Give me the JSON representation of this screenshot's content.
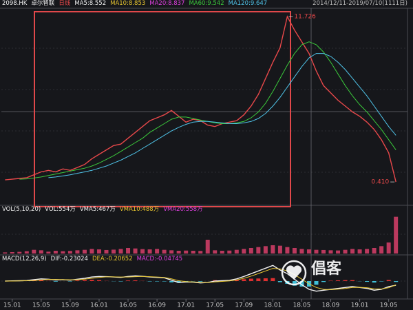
{
  "header": {
    "symbol": "2098.HK",
    "name": "卓尔智联",
    "period": "日线",
    "date_range": "2014/12/11-2019/07/10(1111日)"
  },
  "watermark": "倡客",
  "chart_data": [
    {
      "type": "line",
      "legend": [
        {
          "label": "MA5:8.552",
          "color": "#f2f2f2"
        },
        {
          "label": "MA10:8.853",
          "color": "#e8c630"
        },
        {
          "label": "MA20:8.837",
          "color": "#e040e0"
        },
        {
          "label": "MA60:9.542",
          "color": "#3bc93b"
        },
        {
          "label": "MA120:9.647",
          "color": "#4fc3e8"
        }
      ],
      "x": [
        -1,
        0,
        1,
        2,
        3,
        4,
        5,
        6,
        7,
        8,
        9,
        10,
        11,
        12,
        13,
        14,
        15,
        16,
        17,
        18,
        19,
        20,
        21,
        22,
        23,
        24,
        25,
        26,
        27,
        28,
        29,
        30,
        31,
        32,
        33,
        34,
        35,
        36,
        37,
        38,
        39,
        40,
        41,
        42,
        43,
        44,
        45,
        46,
        47,
        48,
        49,
        50,
        51,
        52,
        53
      ],
      "xlim": [
        -1.5,
        54.6
      ],
      "ylim": [
        -1,
        12.2
      ],
      "series": [
        {
          "color": "#e8484a",
          "values": [
            0.55,
            0.6,
            0.65,
            0.7,
            0.9,
            1.1,
            1.2,
            1.1,
            1.3,
            1.2,
            1.4,
            1.6,
            2.0,
            2.3,
            2.6,
            2.9,
            3.0,
            3.4,
            3.8,
            4.2,
            4.6,
            4.8,
            5.0,
            5.3,
            4.9,
            4.5,
            4.7,
            4.6,
            4.3,
            4.2,
            4.4,
            4.5,
            4.6,
            5.0,
            5.6,
            6.4,
            7.5,
            8.6,
            9.6,
            11.726,
            10.8,
            10.0,
            9.2,
            8.0,
            7.0,
            6.5,
            6.0,
            5.6,
            5.2,
            4.9,
            4.5,
            4.0,
            3.3,
            2.4,
            0.41
          ]
        },
        {
          "color": "#3bc93b",
          "values": [
            null,
            null,
            0.6,
            0.62,
            0.68,
            0.75,
            0.85,
            0.95,
            1.05,
            1.15,
            1.25,
            1.35,
            1.5,
            1.7,
            1.95,
            2.2,
            2.5,
            2.8,
            3.1,
            3.4,
            3.8,
            4.1,
            4.4,
            4.7,
            4.85,
            4.85,
            4.75,
            4.65,
            4.55,
            4.45,
            4.4,
            4.4,
            4.45,
            4.55,
            4.8,
            5.2,
            5.8,
            6.6,
            7.5,
            8.4,
            9.2,
            9.8,
            10.0,
            9.8,
            9.3,
            8.6,
            7.8,
            7.0,
            6.3,
            5.7,
            5.2,
            4.6,
            4.0,
            3.3,
            2.6
          ]
        },
        {
          "color": "#4fc3e8",
          "values": [
            null,
            null,
            null,
            null,
            null,
            null,
            0.7,
            0.75,
            0.82,
            0.9,
            1.0,
            1.1,
            1.2,
            1.35,
            1.5,
            1.7,
            1.9,
            2.15,
            2.4,
            2.7,
            3.0,
            3.3,
            3.6,
            3.9,
            4.15,
            4.35,
            4.5,
            4.55,
            4.55,
            4.5,
            4.45,
            4.4,
            4.4,
            4.45,
            4.55,
            4.75,
            5.1,
            5.6,
            6.2,
            6.9,
            7.6,
            8.3,
            8.9,
            9.2,
            9.2,
            9.0,
            8.6,
            8.1,
            7.5,
            6.9,
            6.3,
            5.6,
            4.9,
            4.2,
            3.6
          ]
        }
      ],
      "annotations": [
        {
          "text": "11.726",
          "x": 38,
          "y": 11.726
        },
        {
          "text": "0.410",
          "x": 53,
          "y": 0.41
        }
      ]
    },
    {
      "type": "bar",
      "title": "VOL(5,10,20)",
      "legend": [
        {
          "label": "VOL:554万",
          "color": "#f2f2f2"
        },
        {
          "label": "VMA5:467万",
          "color": "#f2f2f2"
        },
        {
          "label": "VMA10:488万",
          "color": "#e8c630"
        },
        {
          "label": "VMA20:558万",
          "color": "#e040e0"
        }
      ],
      "x": [
        -1,
        0,
        1,
        2,
        3,
        4,
        5,
        6,
        7,
        8,
        9,
        10,
        11,
        12,
        13,
        14,
        15,
        16,
        17,
        18,
        19,
        20,
        21,
        22,
        23,
        24,
        25,
        26,
        27,
        28,
        29,
        30,
        31,
        32,
        33,
        34,
        35,
        36,
        37,
        38,
        39,
        40,
        41,
        42,
        43,
        44,
        45,
        46,
        47,
        48,
        49,
        50,
        51,
        52,
        53
      ],
      "xlim": [
        -1.5,
        54.6
      ],
      "ylim": [
        0,
        4200
      ],
      "color": "#d8406a",
      "values": [
        120,
        150,
        180,
        250,
        400,
        350,
        200,
        300,
        250,
        280,
        350,
        400,
        500,
        450,
        380,
        420,
        500,
        600,
        550,
        480,
        450,
        500,
        400,
        350,
        300,
        320,
        300,
        280,
        1500,
        350,
        300,
        320,
        400,
        500,
        600,
        700,
        800,
        900,
        850,
        700,
        600,
        500,
        450,
        400,
        380,
        350,
        330,
        400,
        500,
        450,
        500,
        600,
        800,
        1200,
        4000
      ]
    },
    {
      "type": "macd",
      "title": "MACD(12,26,9)",
      "legend": [
        {
          "label": "DIF:-0.23024",
          "color": "#f2f2f2"
        },
        {
          "label": "DEA:-0.20652",
          "color": "#e8c630"
        },
        {
          "label": "MACD:-0.04745",
          "color": "#e040e0"
        }
      ],
      "x": [
        -1,
        0,
        1,
        2,
        3,
        4,
        5,
        6,
        7,
        8,
        9,
        10,
        11,
        12,
        13,
        14,
        15,
        16,
        17,
        18,
        19,
        20,
        21,
        22,
        23,
        24,
        25,
        26,
        27,
        28,
        29,
        30,
        31,
        32,
        33,
        34,
        35,
        36,
        37,
        38,
        39,
        40,
        41,
        42,
        43,
        44,
        45,
        46,
        47,
        48,
        49,
        50,
        51,
        52,
        53
      ],
      "xlim": [
        -1.5,
        54.6
      ],
      "ylim": [
        -0.9,
        0.9
      ],
      "xticks": [
        {
          "value": 0,
          "label": "15.01"
        },
        {
          "value": 4,
          "label": "15.05"
        },
        {
          "value": 8,
          "label": "15.09"
        },
        {
          "value": 12,
          "label": "16.01"
        },
        {
          "value": 16,
          "label": "16.05"
        },
        {
          "value": 20,
          "label": "16.09"
        },
        {
          "value": 24,
          "label": "17.01"
        },
        {
          "value": 28,
          "label": "17.05"
        },
        {
          "value": 32,
          "label": "17.09"
        },
        {
          "value": 36,
          "label": "18.01"
        },
        {
          "value": 40,
          "label": "18.05"
        },
        {
          "value": 44,
          "label": "18.09"
        },
        {
          "value": 48,
          "label": "19.01"
        },
        {
          "value": 52,
          "label": "19.05"
        }
      ],
      "series": [
        {
          "color": "#f2f2f2",
          "values": [
            0.0,
            0.01,
            0.02,
            0.03,
            0.08,
            0.12,
            0.1,
            0.06,
            0.08,
            0.05,
            0.1,
            0.15,
            0.22,
            0.25,
            0.24,
            0.22,
            0.2,
            0.25,
            0.28,
            0.26,
            0.22,
            0.2,
            0.18,
            0.05,
            -0.08,
            -0.05,
            -0.06,
            -0.1,
            -0.08,
            0.0,
            0.02,
            0.04,
            0.12,
            0.25,
            0.4,
            0.55,
            0.7,
            0.85,
            0.6,
            0.4,
            0.1,
            -0.2,
            -0.45,
            -0.55,
            -0.5,
            -0.45,
            -0.4,
            -0.35,
            -0.3,
            -0.35,
            -0.4,
            -0.5,
            -0.45,
            -0.3,
            -0.23024
          ]
        },
        {
          "color": "#e8c630",
          "values": [
            0.0,
            0.0,
            0.01,
            0.02,
            0.03,
            0.06,
            0.09,
            0.09,
            0.08,
            0.07,
            0.07,
            0.1,
            0.15,
            0.2,
            0.23,
            0.23,
            0.22,
            0.22,
            0.24,
            0.25,
            0.24,
            0.22,
            0.2,
            0.12,
            0.02,
            -0.03,
            -0.05,
            -0.07,
            -0.08,
            -0.05,
            -0.02,
            0.01,
            0.06,
            0.15,
            0.27,
            0.41,
            0.55,
            0.69,
            0.66,
            0.55,
            0.35,
            0.1,
            -0.15,
            -0.35,
            -0.45,
            -0.47,
            -0.44,
            -0.4,
            -0.35,
            -0.34,
            -0.36,
            -0.42,
            -0.43,
            -0.36,
            -0.20652
          ]
        }
      ],
      "histogram": {
        "up_color": "#e03030",
        "down_color": "#40c0d8",
        "values": [
          0,
          0.01,
          0.01,
          0.01,
          0.05,
          0.06,
          0.01,
          -0.03,
          0,
          -0.02,
          0.03,
          0.05,
          0.07,
          0.05,
          0.01,
          -0.01,
          -0.02,
          0.03,
          0.04,
          0.01,
          -0.02,
          -0.02,
          -0.02,
          -0.07,
          -0.1,
          -0.02,
          -0.01,
          -0.03,
          0,
          0.05,
          0.04,
          0.03,
          0.06,
          0.1,
          0.13,
          0.14,
          0.15,
          0.16,
          -0.06,
          -0.15,
          -0.25,
          -0.3,
          -0.3,
          -0.2,
          -0.05,
          0.02,
          0.04,
          0.05,
          0.05,
          -0.01,
          -0.04,
          -0.08,
          -0.02,
          0.06,
          -0.04745
        ]
      }
    }
  ]
}
